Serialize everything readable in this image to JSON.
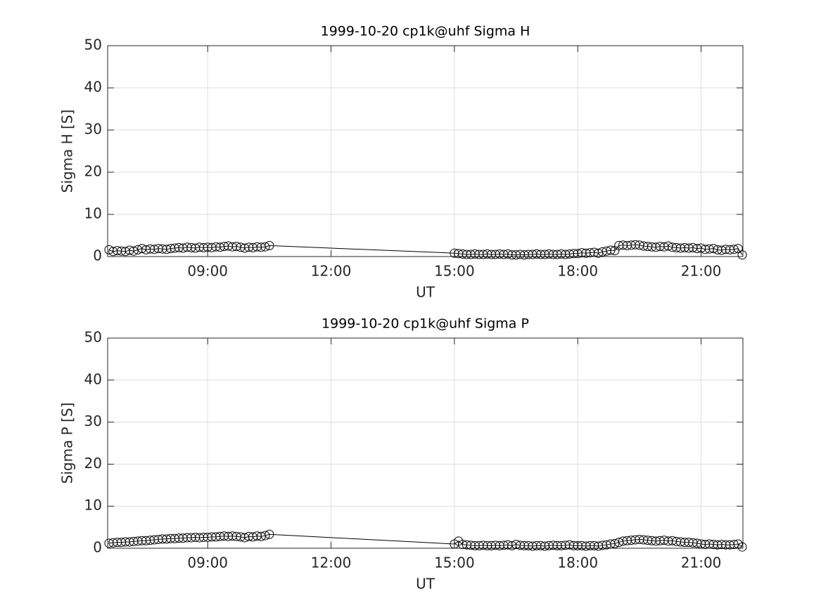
{
  "chart_data": [
    {
      "type": "line",
      "title": "1999-10-20  cp1k@uhf Sigma H",
      "xlabel": "UT",
      "ylabel": "Sigma H [S]",
      "color": "#000000",
      "marker": "o",
      "grid": true,
      "xlim": [
        "06:34",
        "22:01"
      ],
      "xticks": [
        "09:00",
        "12:00",
        "15:00",
        "18:00",
        "21:00"
      ],
      "ylim": [
        0,
        50
      ],
      "yticks": [
        0,
        10,
        20,
        30,
        40,
        50
      ],
      "x": [
        "06:36",
        "06:42",
        "06:48",
        "06:54",
        "07:00",
        "07:06",
        "07:12",
        "07:18",
        "07:24",
        "07:30",
        "07:36",
        "07:42",
        "07:48",
        "07:54",
        "08:00",
        "08:06",
        "08:12",
        "08:18",
        "08:24",
        "08:30",
        "08:36",
        "08:42",
        "08:48",
        "08:54",
        "09:00",
        "09:06",
        "09:12",
        "09:18",
        "09:24",
        "09:30",
        "09:36",
        "09:42",
        "09:48",
        "09:54",
        "10:00",
        "10:06",
        "10:12",
        "10:18",
        "10:24",
        "10:30",
        "15:00",
        "15:06",
        "15:12",
        "15:18",
        "15:24",
        "15:30",
        "15:36",
        "15:42",
        "15:48",
        "15:54",
        "16:00",
        "16:06",
        "16:12",
        "16:18",
        "16:24",
        "16:30",
        "16:36",
        "16:42",
        "16:48",
        "16:54",
        "17:00",
        "17:06",
        "17:12",
        "17:18",
        "17:24",
        "17:30",
        "17:36",
        "17:42",
        "17:48",
        "17:54",
        "18:00",
        "18:06",
        "18:12",
        "18:18",
        "18:24",
        "18:30",
        "18:36",
        "18:42",
        "18:48",
        "18:54",
        "19:00",
        "19:06",
        "19:12",
        "19:18",
        "19:24",
        "19:30",
        "19:36",
        "19:42",
        "19:48",
        "19:54",
        "20:00",
        "20:06",
        "20:12",
        "20:18",
        "20:24",
        "20:30",
        "20:36",
        "20:42",
        "20:48",
        "20:54",
        "21:00",
        "21:06",
        "21:12",
        "21:18",
        "21:24",
        "21:30",
        "21:36",
        "21:42",
        "21:48",
        "21:54",
        "22:00"
      ],
      "values": [
        1.6,
        1.2,
        1.4,
        1.3,
        1.2,
        1.5,
        1.3,
        1.6,
        1.9,
        1.6,
        1.8,
        1.7,
        1.9,
        1.8,
        1.7,
        1.9,
        2.0,
        2.1,
        2.0,
        2.2,
        2.1,
        2.0,
        2.2,
        2.1,
        2.2,
        2.1,
        2.3,
        2.2,
        2.4,
        2.5,
        2.3,
        2.4,
        2.2,
        2.0,
        2.2,
        2.1,
        2.3,
        2.2,
        2.3,
        2.6,
        0.8,
        0.7,
        0.6,
        0.5,
        0.5,
        0.6,
        0.5,
        0.5,
        0.6,
        0.5,
        0.5,
        0.6,
        0.5,
        0.6,
        0.4,
        0.4,
        0.5,
        0.4,
        0.5,
        0.5,
        0.6,
        0.5,
        0.5,
        0.6,
        0.5,
        0.5,
        0.6,
        0.5,
        0.6,
        0.7,
        0.7,
        0.9,
        0.8,
        0.9,
        1.0,
        0.8,
        1.1,
        1.3,
        1.5,
        1.4,
        2.6,
        2.7,
        2.6,
        2.7,
        2.8,
        2.7,
        2.5,
        2.4,
        2.3,
        2.2,
        2.4,
        2.3,
        2.5,
        2.2,
        2.1,
        2.0,
        2.1,
        2.0,
        2.1,
        1.9,
        2.0,
        1.7,
        1.8,
        1.9,
        1.6,
        1.5,
        1.7,
        1.6,
        1.7,
        1.9,
        0.4
      ]
    },
    {
      "type": "line",
      "title": "1999-10-20  cp1k@uhf Sigma P",
      "xlabel": "UT",
      "ylabel": "Sigma P [S]",
      "color": "#000000",
      "marker": "o",
      "grid": true,
      "xlim": [
        "06:34",
        "22:01"
      ],
      "xticks": [
        "09:00",
        "12:00",
        "15:00",
        "18:00",
        "21:00"
      ],
      "ylim": [
        0,
        50
      ],
      "yticks": [
        0,
        10,
        20,
        30,
        40,
        50
      ],
      "x": [
        "06:36",
        "06:42",
        "06:48",
        "06:54",
        "07:00",
        "07:06",
        "07:12",
        "07:18",
        "07:24",
        "07:30",
        "07:36",
        "07:42",
        "07:48",
        "07:54",
        "08:00",
        "08:06",
        "08:12",
        "08:18",
        "08:24",
        "08:30",
        "08:36",
        "08:42",
        "08:48",
        "08:54",
        "09:00",
        "09:06",
        "09:12",
        "09:18",
        "09:24",
        "09:30",
        "09:36",
        "09:42",
        "09:48",
        "09:54",
        "10:00",
        "10:06",
        "10:12",
        "10:18",
        "10:24",
        "10:30",
        "15:00",
        "15:06",
        "15:12",
        "15:18",
        "15:24",
        "15:30",
        "15:36",
        "15:42",
        "15:48",
        "15:54",
        "16:00",
        "16:06",
        "16:12",
        "16:18",
        "16:24",
        "16:30",
        "16:36",
        "16:42",
        "16:48",
        "16:54",
        "17:00",
        "17:06",
        "17:12",
        "17:18",
        "17:24",
        "17:30",
        "17:36",
        "17:42",
        "17:48",
        "17:54",
        "18:00",
        "18:06",
        "18:12",
        "18:18",
        "18:24",
        "18:30",
        "18:36",
        "18:42",
        "18:48",
        "18:54",
        "19:00",
        "19:06",
        "19:12",
        "19:18",
        "19:24",
        "19:30",
        "19:36",
        "19:42",
        "19:48",
        "19:54",
        "20:00",
        "20:06",
        "20:12",
        "20:18",
        "20:24",
        "20:30",
        "20:36",
        "20:42",
        "20:48",
        "20:54",
        "21:00",
        "21:06",
        "21:12",
        "21:18",
        "21:24",
        "21:30",
        "21:36",
        "21:42",
        "21:48",
        "21:54",
        "22:00"
      ],
      "values": [
        1.2,
        1.3,
        1.4,
        1.4,
        1.5,
        1.5,
        1.6,
        1.7,
        1.8,
        1.8,
        1.9,
        2.0,
        2.1,
        2.2,
        2.2,
        2.3,
        2.3,
        2.4,
        2.4,
        2.5,
        2.5,
        2.6,
        2.5,
        2.6,
        2.6,
        2.7,
        2.7,
        2.8,
        2.9,
        2.8,
        2.9,
        2.8,
        2.7,
        2.5,
        2.8,
        2.7,
        2.9,
        2.8,
        3.0,
        3.3,
        1.0,
        1.7,
        0.9,
        0.8,
        0.7,
        0.6,
        0.6,
        0.7,
        0.6,
        0.6,
        0.7,
        0.6,
        0.7,
        0.8,
        0.6,
        0.9,
        0.7,
        0.6,
        0.6,
        0.5,
        0.6,
        0.6,
        0.5,
        0.6,
        0.7,
        0.6,
        0.6,
        0.7,
        0.8,
        0.6,
        0.6,
        0.6,
        0.5,
        0.6,
        0.6,
        0.5,
        0.7,
        0.8,
        1.0,
        1.1,
        1.4,
        1.7,
        1.8,
        1.9,
        2.0,
        2.1,
        2.0,
        1.9,
        1.8,
        1.7,
        1.8,
        1.9,
        1.7,
        1.8,
        1.6,
        1.5,
        1.4,
        1.4,
        1.3,
        1.2,
        1.0,
        0.9,
        1.0,
        0.9,
        0.8,
        0.9,
        0.8,
        0.8,
        0.9,
        1.0,
        0.3
      ]
    }
  ]
}
